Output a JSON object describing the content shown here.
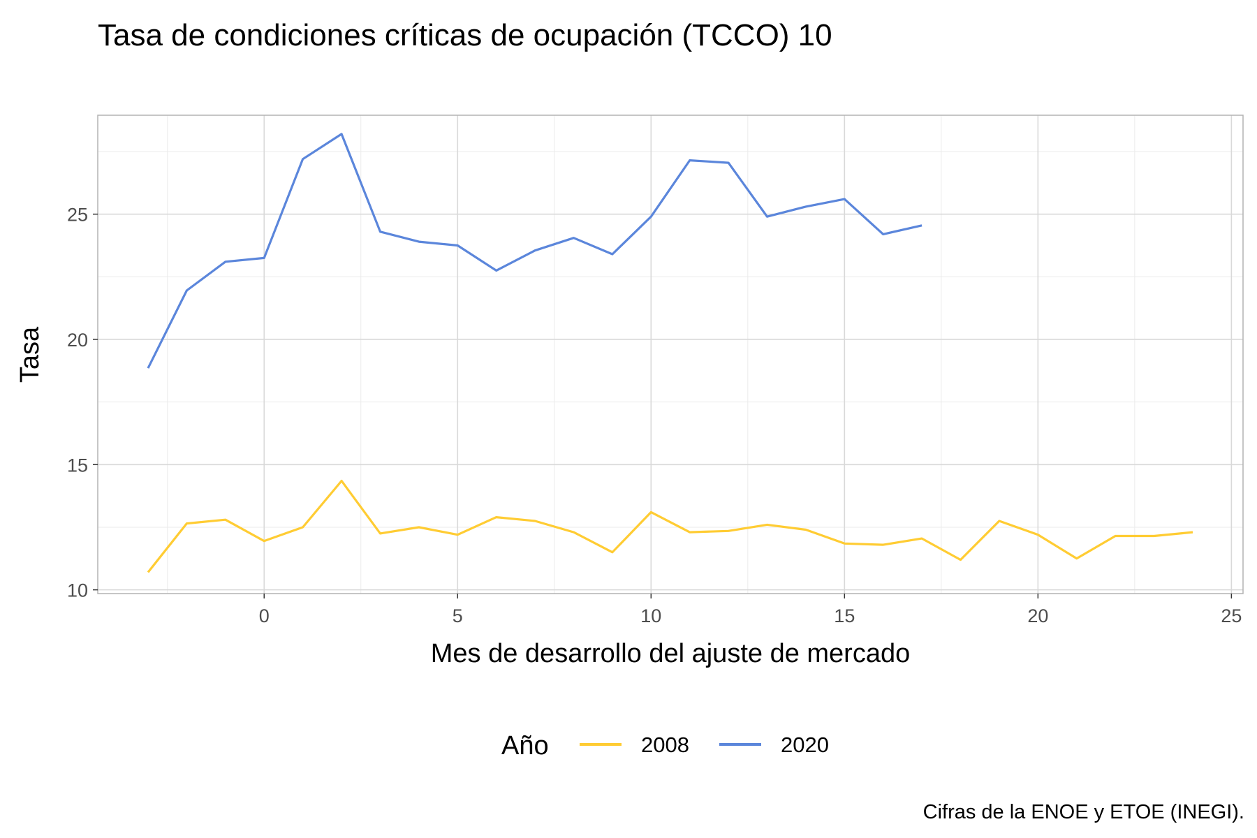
{
  "chart_data": {
    "type": "line",
    "title": "Tasa de condiciones críticas de ocupación (TCCO) 10",
    "xlabel": "Mes de desarrollo del ajuste de mercado",
    "ylabel": "Tasa",
    "caption": "Cifras de la ENOE y ETOE (INEGI).",
    "xlim": [
      -4.3,
      25.3
    ],
    "ylim": [
      9.85,
      28.95
    ],
    "x_ticks": [
      0,
      5,
      10,
      15,
      20,
      25
    ],
    "y_ticks": [
      10,
      15,
      20,
      25
    ],
    "grid": true,
    "legend": {
      "title": "Año",
      "position": "bottom"
    },
    "series": [
      {
        "name": "2008",
        "color": "#FFCC33",
        "x": [
          -3,
          -2,
          -1,
          0,
          1,
          2,
          3,
          4,
          5,
          6,
          7,
          8,
          9,
          10,
          11,
          12,
          13,
          14,
          15,
          16,
          17,
          18,
          19,
          20,
          21,
          22,
          23,
          24
        ],
        "y": [
          10.7,
          12.65,
          12.8,
          11.95,
          12.5,
          14.35,
          12.25,
          12.5,
          12.2,
          12.9,
          12.75,
          12.3,
          11.5,
          13.1,
          12.3,
          12.35,
          12.6,
          12.4,
          11.85,
          11.8,
          12.05,
          11.2,
          12.75,
          12.2,
          11.25,
          12.15,
          12.15,
          12.3
        ]
      },
      {
        "name": "2020",
        "color": "#5B86DB",
        "x": [
          -3,
          -2,
          -1,
          0,
          1,
          2,
          3,
          4,
          5,
          6,
          7,
          8,
          9,
          10,
          11,
          12,
          13,
          14,
          15,
          16,
          17
        ],
        "y": [
          18.85,
          21.95,
          23.1,
          23.25,
          27.2,
          28.2,
          24.3,
          23.9,
          23.75,
          22.75,
          23.55,
          24.05,
          23.4,
          24.9,
          27.15,
          27.05,
          24.9,
          25.3,
          25.6,
          24.2,
          24.55
        ]
      }
    ]
  }
}
